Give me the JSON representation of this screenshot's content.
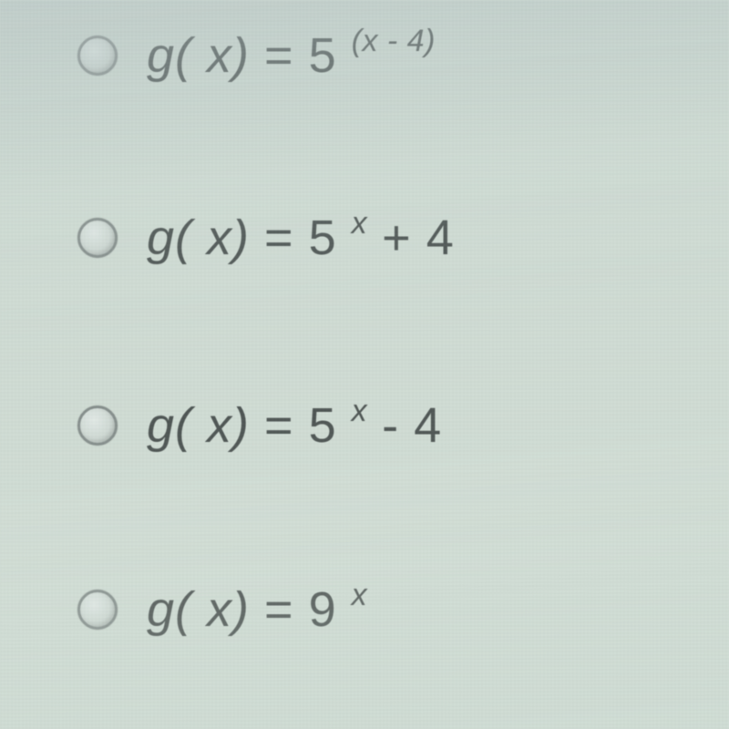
{
  "quiz": {
    "options": [
      {
        "selected": false,
        "lhs": "g( x)",
        "eq": "=",
        "base": "5",
        "exp": "(x - 4)",
        "tail": ""
      },
      {
        "selected": false,
        "lhs": "g( x)",
        "eq": "=",
        "base": "5",
        "exp": "x",
        "tail": "+ 4"
      },
      {
        "selected": false,
        "lhs": "g( x)",
        "eq": "=",
        "base": "5",
        "exp": "x",
        "tail": "- 4"
      },
      {
        "selected": false,
        "lhs": "g( x)",
        "eq": "=",
        "base": "9",
        "exp": "x",
        "tail": ""
      }
    ]
  },
  "style": {
    "background_color": "#d0dcd4",
    "text_color": "#3d4443",
    "radio_border": "#7d8684",
    "radio_fill_top": "#e3ece8",
    "radio_fill_bot": "#b3beb9",
    "font_size_main": 54,
    "font_size_sup": 34,
    "option_gap": [
      138,
      144,
      140
    ],
    "radio_diameter": 44
  }
}
